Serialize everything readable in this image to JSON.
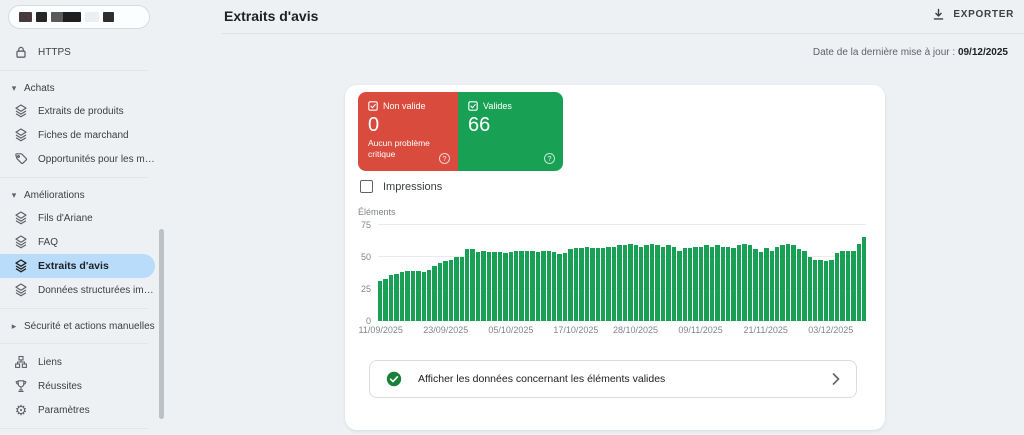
{
  "header": {
    "title": "Extraits d'avis",
    "export_label": "EXPORTER",
    "last_update_prefix": "Date de la dernière mise à jour :",
    "last_update_date": "09/12/2025"
  },
  "sidebar": {
    "property_selector_redacted": true,
    "https_label": "HTTPS",
    "sections": {
      "achats": {
        "label": "Achats",
        "items": [
          "Extraits de produits",
          "Fiches de marchand",
          "Opportunités pour les m…"
        ]
      },
      "ameliorations": {
        "label": "Améliorations",
        "items": [
          "Fils d'Ariane",
          "FAQ",
          "Extraits d'avis",
          "Données structurées im…"
        ],
        "selected_item": "Extraits d'avis"
      },
      "securite": {
        "label": "Sécurité et actions manuelles"
      }
    },
    "bottom_items": [
      "Liens",
      "Réussites",
      "Paramètres"
    ]
  },
  "summary_cards": {
    "invalid": {
      "label": "Non valide",
      "value": "0",
      "note": "Aucun problème critique"
    },
    "valid": {
      "label": "Valides",
      "value": "66"
    }
  },
  "impressions_toggle": {
    "label": "Impressions",
    "checked": false
  },
  "chart_data": {
    "type": "bar",
    "title": "",
    "ylabel": "Éléments",
    "xlabel": "",
    "ylim": [
      0,
      75
    ],
    "yticks": [
      0,
      25,
      50,
      75
    ],
    "grid": true,
    "legend": "none",
    "series_name": "Éléments valides",
    "x_start": "11/09/2025",
    "x_end": "09/12/2025",
    "x_tick_labels": [
      "11/09/2025",
      "23/09/2025",
      "05/10/2025",
      "17/10/2025",
      "28/10/2025",
      "09/11/2025",
      "21/11/2025",
      "03/12/2025"
    ],
    "x_tick_indices": [
      0,
      12,
      24,
      36,
      47,
      59,
      71,
      83
    ],
    "values": [
      31,
      33,
      36,
      37,
      38,
      39,
      39,
      39,
      38,
      40,
      43,
      45,
      47,
      48,
      50,
      50,
      56,
      56,
      54,
      55,
      54,
      54,
      54,
      53,
      54,
      55,
      55,
      55,
      55,
      54,
      55,
      55,
      54,
      52,
      53,
      56,
      57,
      57,
      58,
      57,
      57,
      57,
      58,
      58,
      59,
      59,
      60,
      59,
      58,
      59,
      60,
      59,
      58,
      59,
      58,
      55,
      57,
      57,
      58,
      58,
      59,
      58,
      59,
      58,
      58,
      57,
      59,
      60,
      59,
      56,
      54,
      57,
      55,
      58,
      59,
      60,
      59,
      56,
      55,
      50,
      48,
      48,
      47,
      48,
      53,
      55,
      55,
      55,
      60,
      66
    ]
  },
  "action_row": {
    "text": "Afficher les données concernant les éléments valides"
  },
  "colors": {
    "invalid_red": "#d84b3d",
    "valid_green": "#18a155",
    "bar_green": "#18a155",
    "selected_blue": "#b8dcfa",
    "check_green": "#188038",
    "page_background": "#eef1f4"
  }
}
